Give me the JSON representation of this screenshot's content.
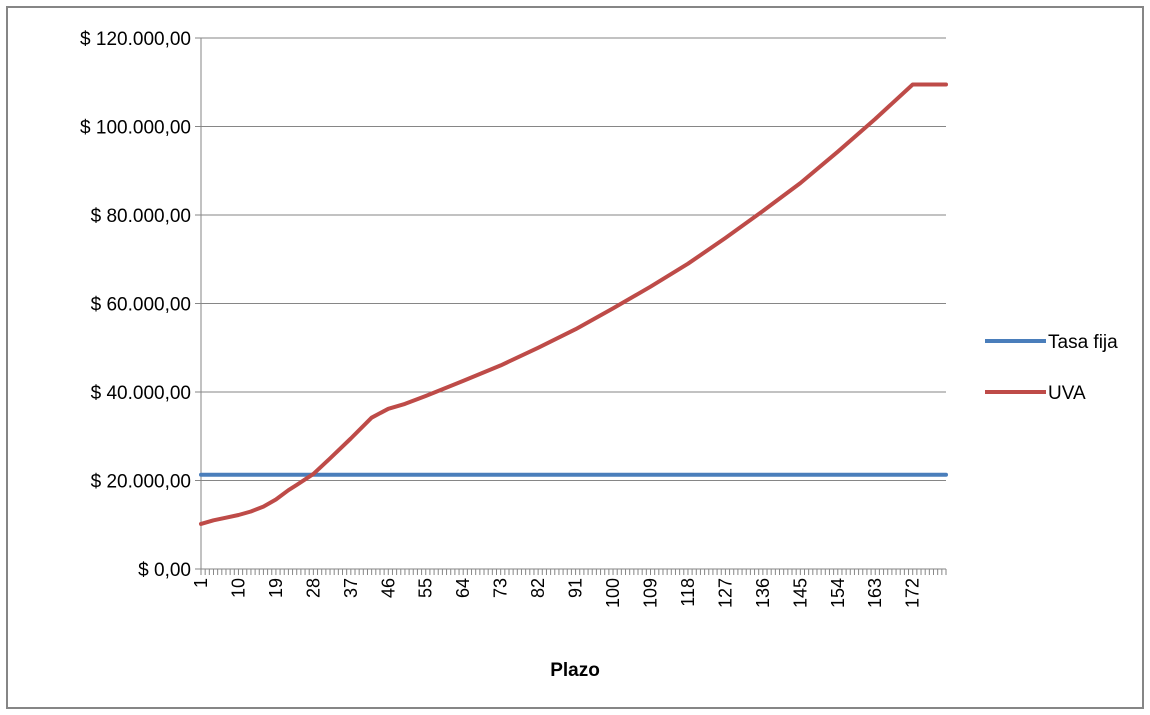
{
  "chart_data": {
    "type": "line",
    "title": "",
    "xlabel": "Plazo",
    "ylabel": "",
    "ylim": [
      0,
      120000
    ],
    "yticks": [
      0,
      20000,
      40000,
      60000,
      80000,
      100000,
      120000
    ],
    "ytick_labels": [
      "$ 0,00",
      "$ 20.000,00",
      "$ 40.000,00",
      "$ 60.000,00",
      "$ 80.000,00",
      "$ 100.000,00",
      "$ 120.000,00"
    ],
    "xlim": [
      1,
      180
    ],
    "xtick_labels": [
      "1",
      "10",
      "19",
      "28",
      "37",
      "46",
      "55",
      "64",
      "73",
      "82",
      "91",
      "100",
      "109",
      "118",
      "127",
      "136",
      "145",
      "154",
      "163",
      "172"
    ],
    "grid": true,
    "legend_position": "right",
    "series": [
      {
        "name": "Tasa fija",
        "color": "#4a7ebb",
        "x": [
          1,
          180
        ],
        "values": [
          21300,
          21300
        ]
      },
      {
        "name": "UVA",
        "color": "#be4b48",
        "x": [
          1,
          4,
          7,
          10,
          13,
          16,
          19,
          22,
          24,
          28,
          32,
          37,
          42,
          46,
          50,
          55,
          64,
          73,
          82,
          91,
          100,
          109,
          118,
          127,
          136,
          145,
          154,
          163,
          172,
          180
        ],
        "values": [
          10200,
          11000,
          11600,
          12200,
          13000,
          14100,
          15700,
          17800,
          19000,
          21500,
          25000,
          29500,
          34200,
          36200,
          37300,
          39100,
          42500,
          46000,
          50000,
          54200,
          58900,
          63800,
          69000,
          74800,
          80900,
          87200,
          94300,
          101700,
          109500,
          109500
        ]
      }
    ]
  }
}
